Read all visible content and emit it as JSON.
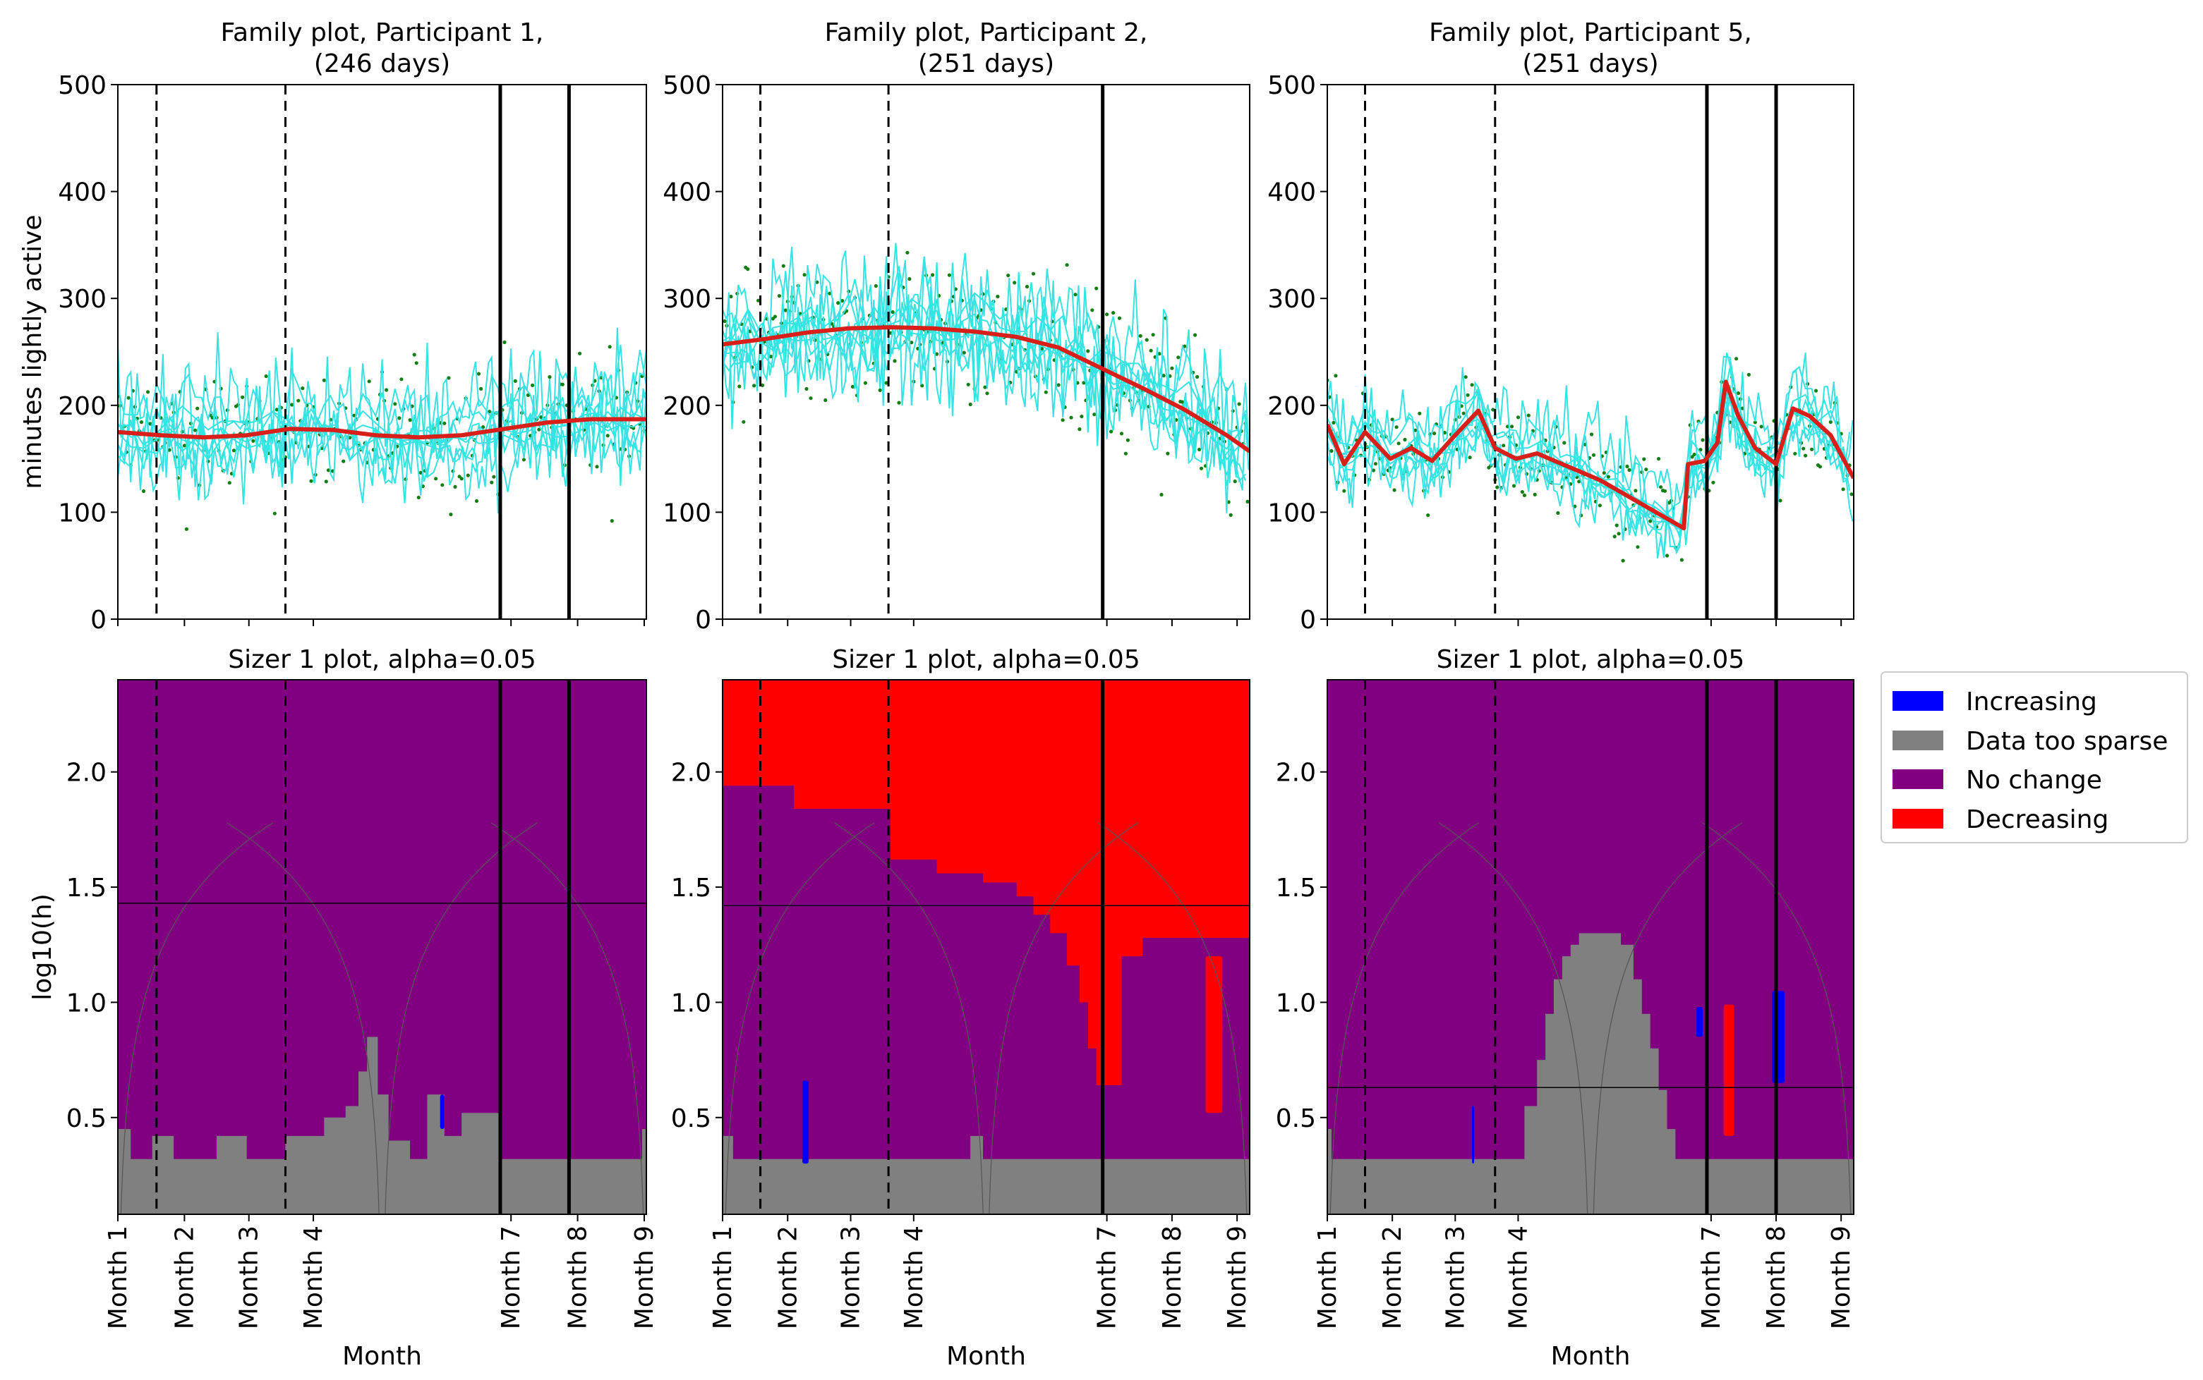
{
  "colors": {
    "scatter": "#137f13",
    "family": "#35e3e3",
    "fit": "#d91f1a",
    "increasing": "#0000ff",
    "sparse": "#808080",
    "nochange": "#800080",
    "decreasing": "#ff0000"
  },
  "legend": {
    "increasing": "Increasing",
    "sparse": "Data too sparse",
    "nochange": "No change",
    "decreasing": "Decreasing"
  },
  "chart_data": [
    {
      "type": "line",
      "title_line1": "Family plot, Participant 1,",
      "title_line2": "(246 days)",
      "ylabel": "minutes lightly active",
      "ylim": [
        0,
        500
      ],
      "yticks": [
        0,
        100,
        200,
        300,
        400,
        500
      ],
      "days": 246,
      "vlines_dashed": [
        18,
        78
      ],
      "vlines_solid": [
        178,
        210
      ],
      "fit": [
        [
          0,
          175
        ],
        [
          20,
          172
        ],
        [
          40,
          170
        ],
        [
          60,
          172
        ],
        [
          80,
          178
        ],
        [
          100,
          177
        ],
        [
          120,
          172
        ],
        [
          140,
          170
        ],
        [
          160,
          172
        ],
        [
          180,
          178
        ],
        [
          200,
          184
        ],
        [
          220,
          187
        ],
        [
          246,
          187
        ]
      ],
      "family_spread": 60,
      "scatter_center": 185,
      "scatter_spread": 70
    },
    {
      "type": "line",
      "title_line1": "Family plot, Participant 2,",
      "title_line2": "(251 days)",
      "ylabel": "",
      "ylim": [
        0,
        500
      ],
      "yticks": [
        0,
        100,
        200,
        300,
        400,
        500
      ],
      "days": 251,
      "vlines_dashed": [
        18,
        79
      ],
      "vlines_solid": [
        181
      ],
      "fit": [
        [
          0,
          257
        ],
        [
          20,
          262
        ],
        [
          40,
          268
        ],
        [
          60,
          272
        ],
        [
          80,
          273
        ],
        [
          100,
          272
        ],
        [
          120,
          269
        ],
        [
          140,
          264
        ],
        [
          160,
          254
        ],
        [
          180,
          235
        ],
        [
          200,
          216
        ],
        [
          220,
          196
        ],
        [
          240,
          172
        ],
        [
          251,
          157
        ]
      ],
      "family_spread": 70,
      "scatter_center": 250,
      "scatter_spread": 80
    },
    {
      "type": "line",
      "title_line1": "Family plot, Participant 5,",
      "title_line2": "(251 days)",
      "ylabel": "",
      "ylim": [
        0,
        500
      ],
      "yticks": [
        0,
        100,
        200,
        300,
        400,
        500
      ],
      "days": 251,
      "vlines_dashed": [
        18,
        80
      ],
      "vlines_solid": [
        181,
        214
      ],
      "fit": [
        [
          0,
          182
        ],
        [
          8,
          145
        ],
        [
          18,
          175
        ],
        [
          30,
          150
        ],
        [
          40,
          160
        ],
        [
          50,
          148
        ],
        [
          60,
          170
        ],
        [
          72,
          195
        ],
        [
          80,
          160
        ],
        [
          90,
          150
        ],
        [
          100,
          155
        ],
        [
          130,
          130
        ],
        [
          170,
          85
        ],
        [
          172,
          145
        ],
        [
          180,
          148
        ],
        [
          186,
          165
        ],
        [
          190,
          222
        ],
        [
          196,
          190
        ],
        [
          204,
          160
        ],
        [
          214,
          145
        ],
        [
          222,
          197
        ],
        [
          230,
          190
        ],
        [
          240,
          172
        ],
        [
          251,
          132
        ]
      ],
      "family_spread": 40,
      "scatter_center": 165,
      "scatter_spread": 50
    },
    {
      "type": "heatmap",
      "title": "Sizer 1 plot, alpha=0.05",
      "ylabel": "log10(h)",
      "xlabel": "Month",
      "ylim": [
        0.08,
        2.4
      ],
      "yticks": [
        0.5,
        1.0,
        1.5,
        2.0
      ],
      "ytick_labels": [
        "0.5",
        "1.0",
        "1.5",
        "2.0"
      ],
      "days": 246,
      "xticks": [
        0,
        31,
        61,
        91,
        183,
        214,
        245
      ],
      "xtick_labels": [
        "Month 1",
        "Month 2",
        "Month 3",
        "Month 4",
        "Month 7",
        "Month 8",
        "Month 9"
      ],
      "vlines_dashed": [
        18,
        78
      ],
      "vlines_solid": [
        178,
        210
      ],
      "hline": 1.43,
      "sparse_profile": [
        [
          0,
          0.45
        ],
        [
          6,
          0.32
        ],
        [
          16,
          0.42
        ],
        [
          26,
          0.32
        ],
        [
          46,
          0.42
        ],
        [
          60,
          0.32
        ],
        [
          78,
          0.42
        ],
        [
          96,
          0.5
        ],
        [
          106,
          0.55
        ],
        [
          112,
          0.7
        ],
        [
          116,
          0.85
        ],
        [
          121,
          0.6
        ],
        [
          126,
          0.4
        ],
        [
          136,
          0.32
        ],
        [
          144,
          0.6
        ],
        [
          152,
          0.42
        ],
        [
          160,
          0.52
        ],
        [
          178,
          0.32
        ],
        [
          240,
          0.32
        ],
        [
          244,
          0.45
        ]
      ],
      "regions": [
        {
          "kind": "increasing",
          "x0": 150,
          "x1": 152,
          "y0": 0.45,
          "y1": 0.6
        }
      ]
    },
    {
      "type": "heatmap",
      "title": "Sizer 1 plot, alpha=0.05",
      "ylabel": "",
      "xlabel": "Month",
      "ylim": [
        0.08,
        2.4
      ],
      "yticks": [
        0.5,
        1.0,
        1.5,
        2.0
      ],
      "ytick_labels": [
        "0.5",
        "1.0",
        "1.5",
        "2.0"
      ],
      "days": 251,
      "xticks": [
        0,
        31,
        61,
        91,
        183,
        214,
        245
      ],
      "xtick_labels": [
        "Month 1",
        "Month 2",
        "Month 3",
        "Month 4",
        "Month 7",
        "Month 8",
        "Month 9"
      ],
      "vlines_dashed": [
        18,
        79
      ],
      "vlines_solid": [
        181
      ],
      "hline": 1.42,
      "sparse_profile": [
        [
          0,
          0.42
        ],
        [
          5,
          0.32
        ],
        [
          118,
          0.42
        ],
        [
          124,
          0.32
        ],
        [
          248,
          0.32
        ],
        [
          251,
          0.42
        ]
      ],
      "decreasing_boundary": [
        [
          0,
          1.94
        ],
        [
          34,
          1.84
        ],
        [
          80,
          1.62
        ],
        [
          102,
          1.56
        ],
        [
          124,
          1.52
        ],
        [
          140,
          1.46
        ],
        [
          148,
          1.38
        ],
        [
          156,
          1.3
        ],
        [
          164,
          1.16
        ],
        [
          170,
          1.0
        ],
        [
          174,
          0.8
        ],
        [
          178,
          0.64
        ],
        [
          190,
          1.2
        ],
        [
          200,
          1.28
        ],
        [
          251,
          1.28
        ]
      ],
      "regions": [
        {
          "kind": "increasing",
          "x0": 38,
          "x1": 41,
          "y0": 0.3,
          "y1": 0.66
        },
        {
          "kind": "decreasing",
          "x0": 230,
          "x1": 238,
          "y0": 0.52,
          "y1": 1.2
        }
      ]
    },
    {
      "type": "heatmap",
      "title": "Sizer 1 plot, alpha=0.05",
      "ylabel": "",
      "xlabel": "Month",
      "ylim": [
        0.08,
        2.4
      ],
      "yticks": [
        0.5,
        1.0,
        1.5,
        2.0
      ],
      "ytick_labels": [
        "0.5",
        "1.0",
        "1.5",
        "2.0"
      ],
      "days": 251,
      "xticks": [
        0,
        31,
        61,
        91,
        183,
        214,
        245
      ],
      "xtick_labels": [
        "Month 1",
        "Month 2",
        "Month 3",
        "Month 4",
        "Month 7",
        "Month 8",
        "Month 9"
      ],
      "vlines_dashed": [
        18,
        80
      ],
      "vlines_solid": [
        181,
        214
      ],
      "hline": 0.63,
      "sparse_profile": [
        [
          0,
          0.45
        ],
        [
          2,
          0.32
        ],
        [
          88,
          0.32
        ],
        [
          94,
          0.55
        ],
        [
          100,
          0.75
        ],
        [
          104,
          0.95
        ],
        [
          108,
          1.1
        ],
        [
          112,
          1.2
        ],
        [
          116,
          1.25
        ],
        [
          120,
          1.3
        ],
        [
          140,
          1.25
        ],
        [
          146,
          1.1
        ],
        [
          150,
          0.95
        ],
        [
          154,
          0.8
        ],
        [
          158,
          0.62
        ],
        [
          162,
          0.45
        ],
        [
          166,
          0.32
        ],
        [
          248,
          0.32
        ],
        [
          251,
          0.45
        ]
      ],
      "regions": [
        {
          "kind": "increasing",
          "x0": 69,
          "x1": 70,
          "y0": 0.3,
          "y1": 0.55
        },
        {
          "kind": "increasing",
          "x0": 176,
          "x1": 179,
          "y0": 0.85,
          "y1": 0.98
        },
        {
          "kind": "decreasing",
          "x0": 189,
          "x1": 194,
          "y0": 0.42,
          "y1": 0.99
        },
        {
          "kind": "increasing",
          "x0": 212,
          "x1": 218,
          "y0": 0.65,
          "y1": 1.05
        }
      ]
    }
  ]
}
